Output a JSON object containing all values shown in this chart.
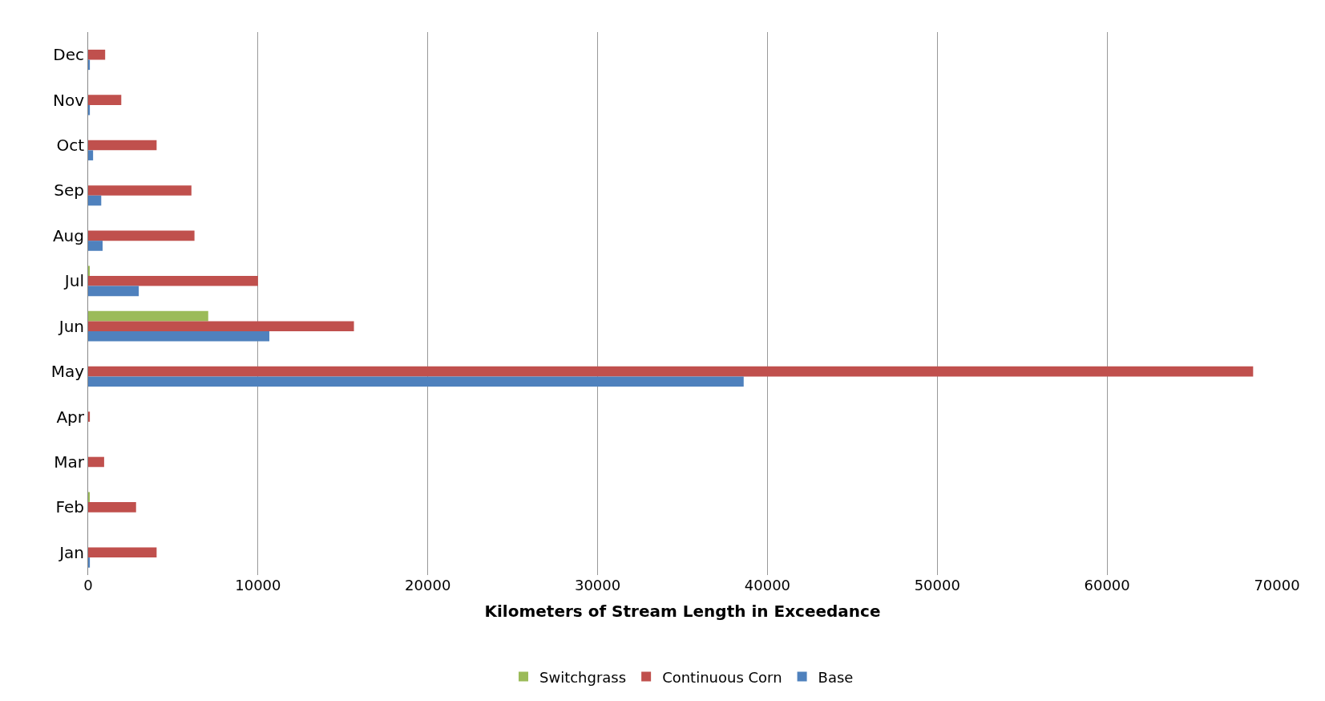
{
  "chart_data": {
    "type": "bar",
    "orientation": "horizontal",
    "xlabel": "Kilometers of Stream Length in Exceedance",
    "categories": [
      "Dec",
      "Nov",
      "Oct",
      "Sep",
      "Aug",
      "Jul",
      "Jun",
      "May",
      "Apr",
      "Mar",
      "Feb",
      "Jan"
    ],
    "series": [
      {
        "name": "Switchgrass",
        "color": "#9bbb59",
        "values": [
          0,
          0,
          0,
          0,
          0,
          80,
          7070,
          0,
          0,
          0,
          80,
          0
        ]
      },
      {
        "name": "Continuous Corn",
        "color": "#c0504d",
        "values": [
          1000,
          1950,
          4030,
          6080,
          6260,
          10000,
          15650,
          68600,
          100,
          940,
          2820,
          4030
        ]
      },
      {
        "name": "Base",
        "color": "#4f81bd",
        "values": [
          100,
          100,
          290,
          770,
          850,
          2980,
          10670,
          38600,
          0,
          0,
          0,
          100
        ]
      }
    ],
    "xlim": [
      0,
      70000
    ],
    "xticks": [
      0,
      10000,
      20000,
      30000,
      40000,
      50000,
      60000,
      70000
    ],
    "grid": "x",
    "legend": "bottom"
  }
}
